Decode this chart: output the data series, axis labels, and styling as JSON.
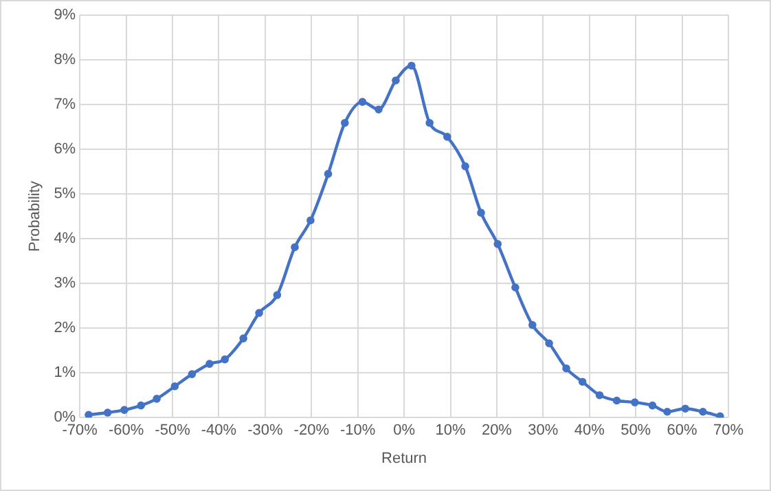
{
  "chart_data": {
    "type": "line",
    "xlabel": "Return",
    "ylabel": "Probability",
    "x": [
      -68.1,
      -64.0,
      -60.4,
      -56.8,
      -53.4,
      -49.5,
      -45.8,
      -42.0,
      -38.7,
      -34.7,
      -31.3,
      -27.4,
      -23.6,
      -20.2,
      -16.4,
      -12.8,
      -9.0,
      -5.5,
      -1.8,
      1.6,
      5.5,
      9.3,
      13.2,
      16.6,
      20.2,
      24.0,
      27.7,
      31.3,
      35.0,
      38.5,
      42.2,
      45.9,
      49.8,
      53.6,
      56.8,
      60.7,
      64.5,
      68.2
    ],
    "series": [
      {
        "color": "#4472c4",
        "values": [
          0.06,
          0.11,
          0.17,
          0.27,
          0.42,
          0.7,
          0.97,
          1.2,
          1.3,
          1.77,
          2.34,
          2.74,
          3.81,
          4.41,
          5.45,
          6.59,
          7.06,
          6.89,
          7.54,
          7.87,
          6.59,
          6.28,
          5.62,
          4.58,
          3.88,
          2.91,
          2.07,
          1.66,
          1.1,
          0.8,
          0.5,
          0.38,
          0.34,
          0.27,
          0.13,
          0.2,
          0.13,
          0.03
        ]
      }
    ],
    "xlim": [
      -70,
      70
    ],
    "xticks": [
      {
        "value": -70,
        "label": "-70%"
      },
      {
        "value": -60,
        "label": "-60%"
      },
      {
        "value": -50,
        "label": "-50%"
      },
      {
        "value": -40,
        "label": "-40%"
      },
      {
        "value": -30,
        "label": "-30%"
      },
      {
        "value": -20,
        "label": "-20%"
      },
      {
        "value": -10,
        "label": "-10%"
      },
      {
        "value": 0,
        "label": "0%"
      },
      {
        "value": 10,
        "label": "10%"
      },
      {
        "value": 20,
        "label": "20%"
      },
      {
        "value": 30,
        "label": "30%"
      },
      {
        "value": 40,
        "label": "40%"
      },
      {
        "value": 50,
        "label": "50%"
      },
      {
        "value": 60,
        "label": "60%"
      },
      {
        "value": 70,
        "label": "70%"
      }
    ],
    "ylim": [
      0,
      9
    ],
    "yticks": [
      {
        "value": 0,
        "label": "0%"
      },
      {
        "value": 1,
        "label": "1%"
      },
      {
        "value": 2,
        "label": "2%"
      },
      {
        "value": 3,
        "label": "3%"
      },
      {
        "value": 4,
        "label": "4%"
      },
      {
        "value": 5,
        "label": "5%"
      },
      {
        "value": 6,
        "label": "6%"
      },
      {
        "value": 7,
        "label": "7%"
      },
      {
        "value": 8,
        "label": "8%"
      },
      {
        "value": 9,
        "label": "9%"
      }
    ],
    "grid": true,
    "marker": "circle",
    "line_style": "solid"
  }
}
